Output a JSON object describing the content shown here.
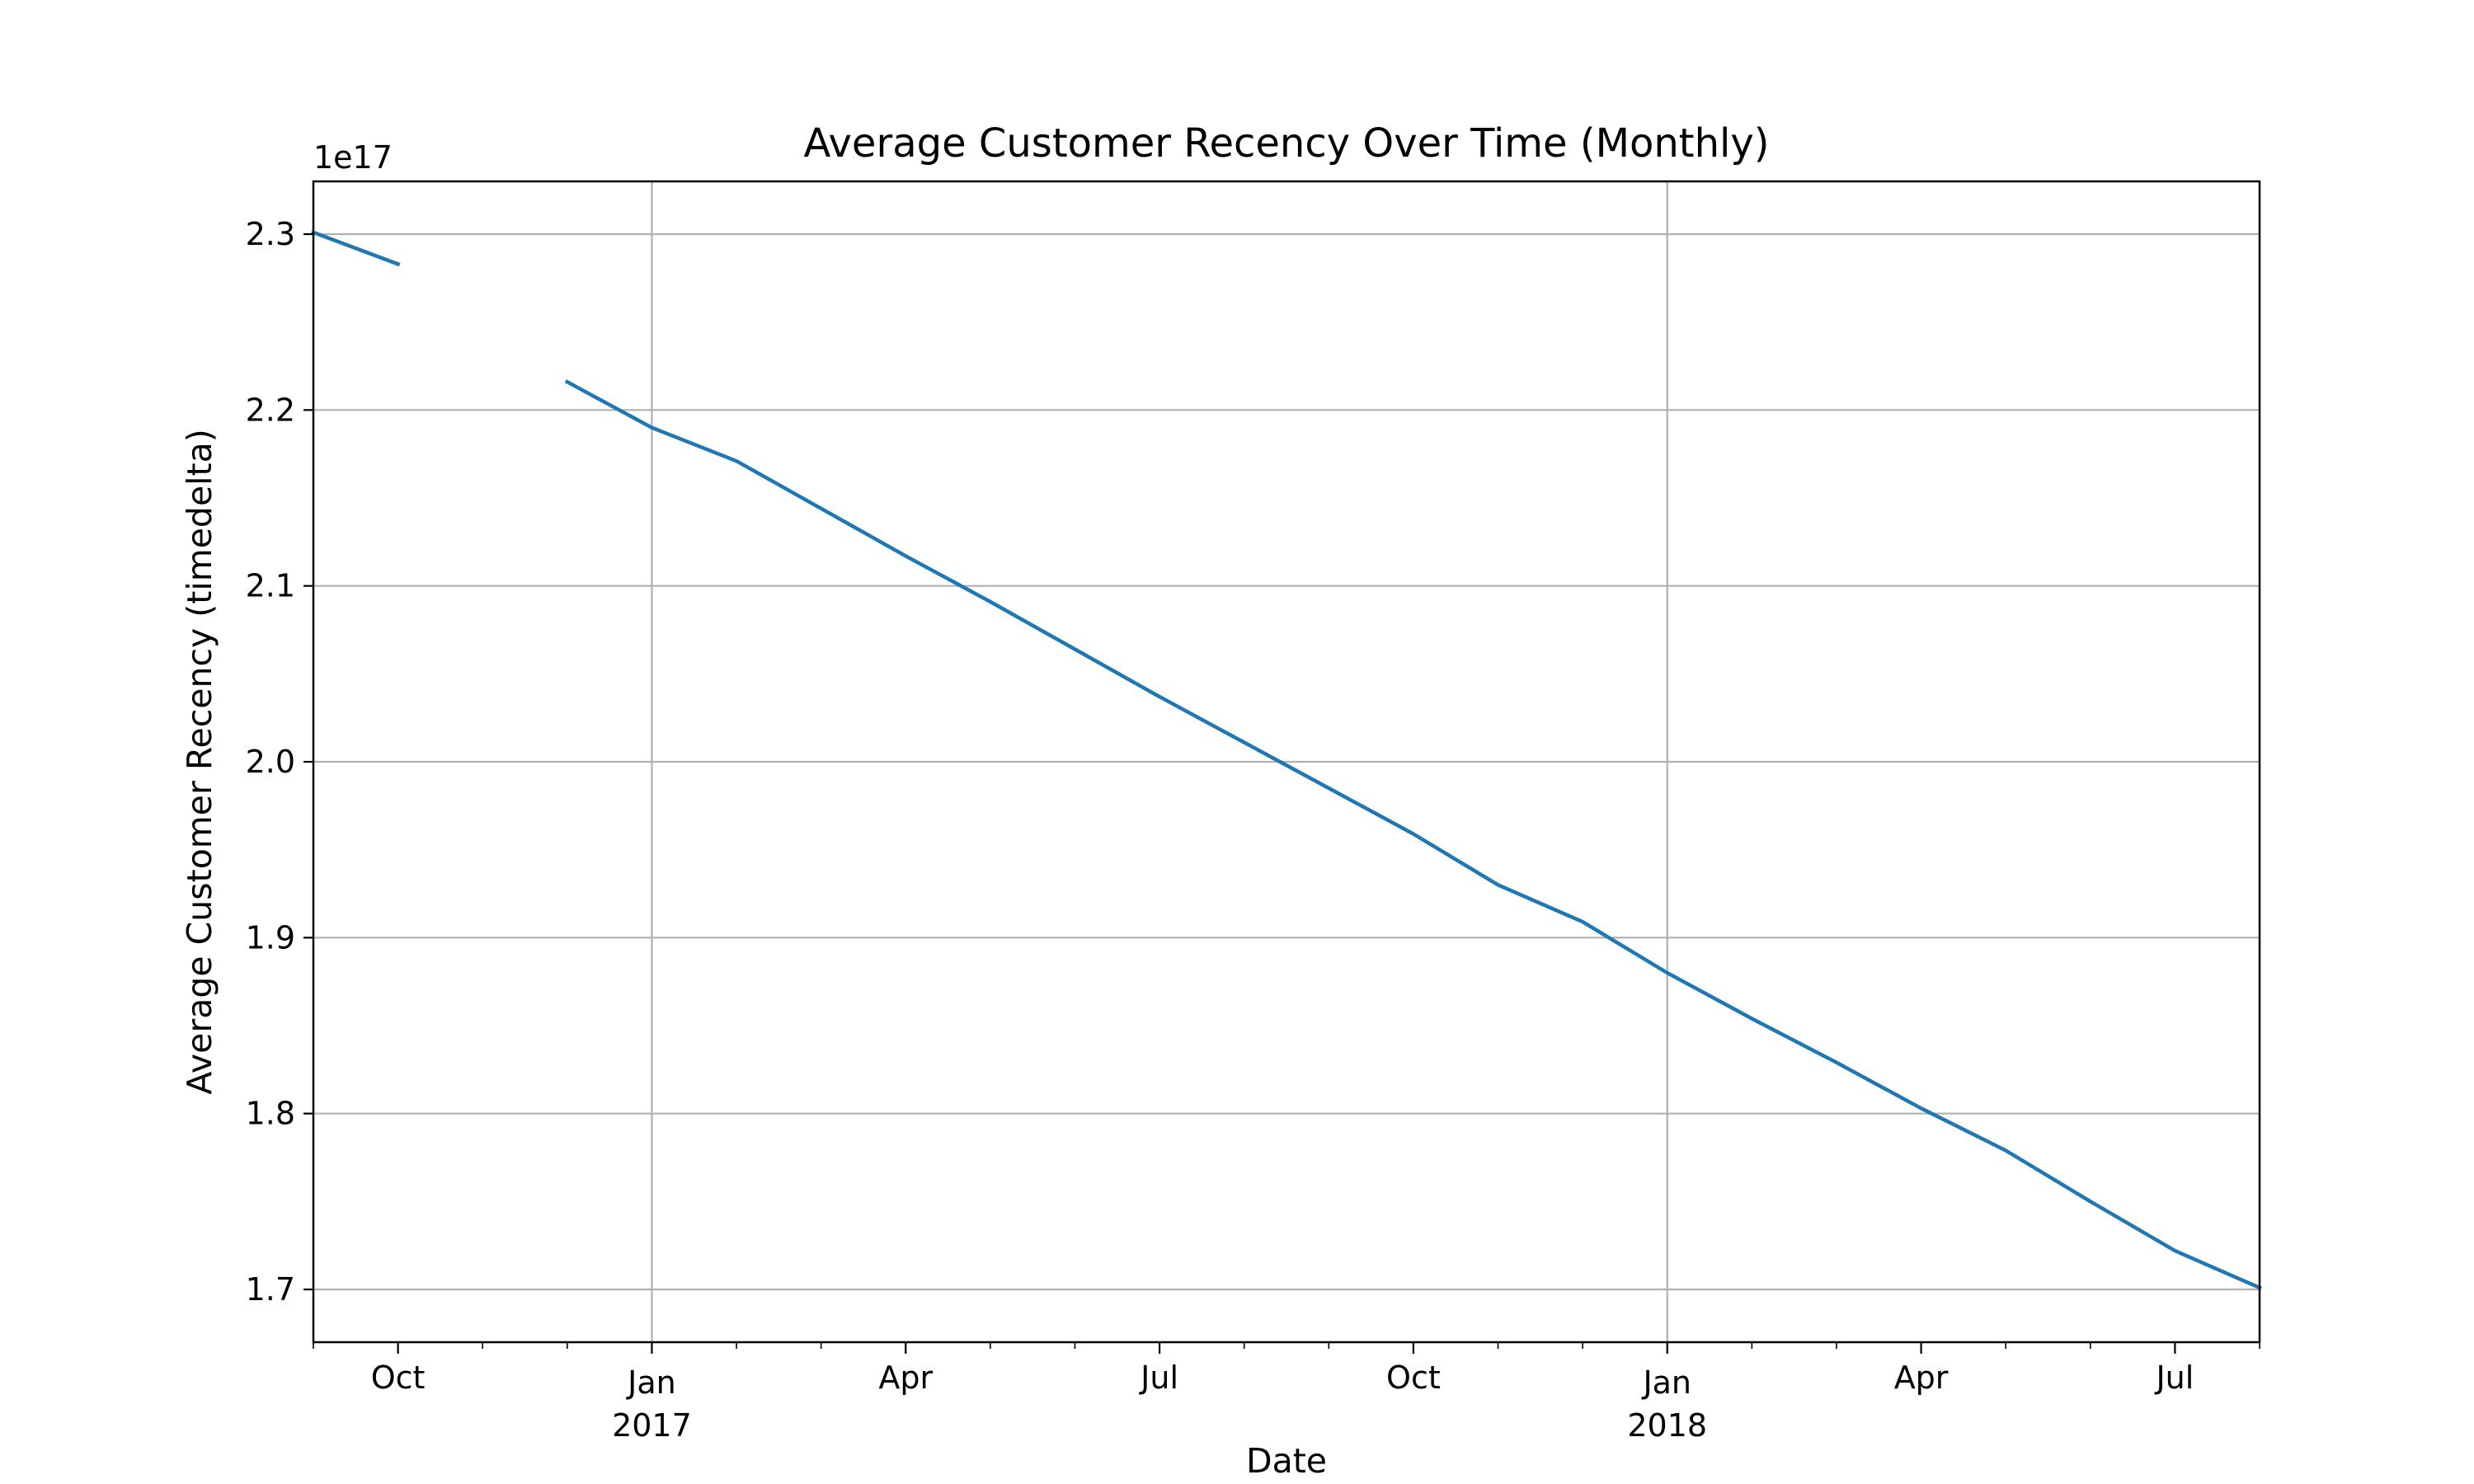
{
  "chart_data": {
    "type": "line",
    "title": "Average Customer Recency Over Time (Monthly)",
    "xlabel": "Date",
    "ylabel": "Average Customer Recency (timedelta)",
    "y_offset_label": "1e17",
    "y_scale": 1e+17,
    "xlim": [
      "2016-09",
      "2018-08"
    ],
    "ylim": [
      1.67,
      2.33
    ],
    "grid": true,
    "line_color": "#1f77b4",
    "x_major_ticks": [
      {
        "x": "2016-10",
        "label": "Oct",
        "sub": ""
      },
      {
        "x": "2017-01",
        "label": "Jan",
        "sub": "2017"
      },
      {
        "x": "2017-04",
        "label": "Apr",
        "sub": ""
      },
      {
        "x": "2017-07",
        "label": "Jul",
        "sub": ""
      },
      {
        "x": "2017-10",
        "label": "Oct",
        "sub": ""
      },
      {
        "x": "2018-01",
        "label": "Jan",
        "sub": "2018"
      },
      {
        "x": "2018-04",
        "label": "Apr",
        "sub": ""
      },
      {
        "x": "2018-07",
        "label": "Jul",
        "sub": ""
      }
    ],
    "y_ticks": [
      {
        "value": 1.7,
        "label": "1.7"
      },
      {
        "value": 1.8,
        "label": "1.8"
      },
      {
        "value": 1.9,
        "label": "1.9"
      },
      {
        "value": 2.0,
        "label": "2.0"
      },
      {
        "value": 2.1,
        "label": "2.1"
      },
      {
        "value": 2.2,
        "label": "2.2"
      },
      {
        "value": 2.3,
        "label": "2.3"
      }
    ],
    "series": [
      {
        "segments": [
          {
            "x": [
              "2016-09",
              "2016-10"
            ],
            "y": [
              2.301,
              2.283
            ]
          },
          {
            "x": [
              "2016-12",
              "2017-01",
              "2017-02",
              "2017-03",
              "2017-04",
              "2017-05",
              "2017-06",
              "2017-07",
              "2017-08",
              "2017-09",
              "2017-10",
              "2017-11",
              "2017-12",
              "2018-01",
              "2018-02",
              "2018-03",
              "2018-04",
              "2018-05",
              "2018-06",
              "2018-07",
              "2018-08"
            ],
            "y": [
              2.216,
              2.19,
              2.171,
              2.144,
              2.117,
              2.091,
              2.064,
              2.037,
              2.011,
              1.985,
              1.959,
              1.93,
              1.909,
              1.88,
              1.854,
              1.829,
              1.803,
              1.779,
              1.75,
              1.722,
              1.701
            ]
          }
        ]
      }
    ]
  }
}
